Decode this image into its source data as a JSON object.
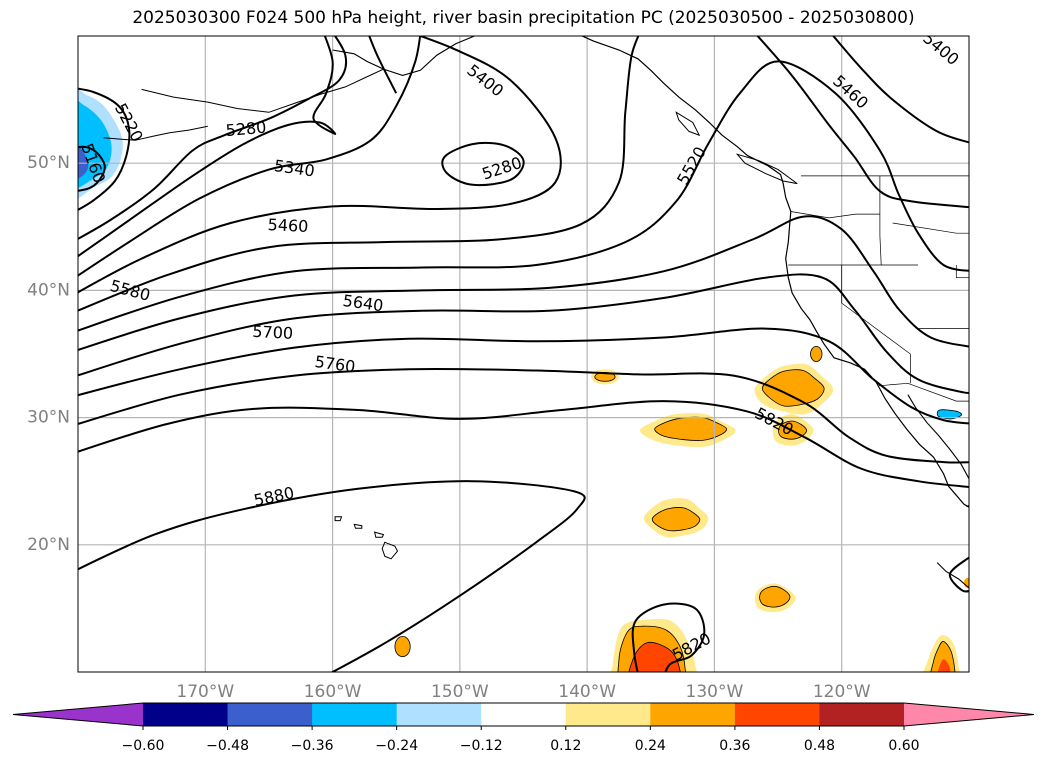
{
  "chart_data": {
    "type": "contour map",
    "title": "2025030300 F024 500 hPa height, river basin precipitation PC (2025030500 - 2025030800)",
    "lon_range": [
      -180,
      -110
    ],
    "lat_range": [
      10,
      60
    ],
    "lon_ticks": [
      -170,
      -160,
      -150,
      -140,
      -130,
      -120
    ],
    "lon_tick_labels": [
      "170°W",
      "160°W",
      "150°W",
      "140°W",
      "130°W",
      "120°W"
    ],
    "lat_ticks": [
      20,
      30,
      40,
      50
    ],
    "lat_tick_labels": [
      "20°N",
      "30°N",
      "40°N",
      "50°N"
    ],
    "grid": true,
    "colorbar": {
      "levels": [
        -0.6,
        -0.48,
        -0.36,
        -0.24,
        -0.12,
        0.12,
        0.24,
        0.36,
        0.48,
        0.6
      ],
      "tick_labels": [
        "−0.60",
        "−0.48",
        "−0.36",
        "−0.24",
        "−0.12",
        "0.12",
        "0.24",
        "0.36",
        "0.48",
        "0.60"
      ],
      "colors": [
        "#9933cc",
        "#00008b",
        "#3b5fcd",
        "#00bfff",
        "#b0e0ff",
        "#ffffff",
        "#ffe98a",
        "#ffa500",
        "#ff4500",
        "#b22222",
        "#ff88aa"
      ],
      "extend": "both",
      "orientation": "horizontal"
    },
    "height_contours_gpm": [
      {
        "value": 5160,
        "label": "5160",
        "labeled": true
      },
      {
        "value": 5220,
        "label": "5220",
        "labeled": true
      },
      {
        "value": 5280,
        "label": "5280",
        "labeled": true
      },
      {
        "value": 5280,
        "label": "5280",
        "labeled": true
      },
      {
        "value": 5340,
        "label": "5340",
        "labeled": true
      },
      {
        "value": 5400,
        "label": "5400",
        "labeled": true
      },
      {
        "value": 5400,
        "label": "5400",
        "labeled": true
      },
      {
        "value": 5460,
        "label": "5460",
        "labeled": true
      },
      {
        "value": 5460,
        "label": "5460",
        "labeled": true
      },
      {
        "value": 5520,
        "label": "5520",
        "labeled": true
      },
      {
        "value": 5580,
        "label": "5580",
        "labeled": true
      },
      {
        "value": 5640,
        "label": "5640",
        "labeled": true
      },
      {
        "value": 5700,
        "label": "5700",
        "labeled": true
      },
      {
        "value": 5760,
        "label": "5760",
        "labeled": true
      },
      {
        "value": 5820,
        "label": "5820",
        "labeled": true
      },
      {
        "value": 5820,
        "label": "5820",
        "labeled": true
      },
      {
        "value": 5880,
        "label": "5880",
        "labeled": true
      }
    ],
    "precip_pc_regions": [
      {
        "name": "gulf-of-alaska-negative",
        "value_band": "-0.36 to -0.48",
        "center": [
          -179,
          51
        ]
      },
      {
        "name": "off-baja-blob",
        "value_band": "0.24 to 0.36",
        "center": [
          -124,
          32.5
        ]
      },
      {
        "name": "mid-pacific-blob-1",
        "value_band": "0.24 to 0.36",
        "center": [
          -132,
          29
        ]
      },
      {
        "name": "mid-pacific-blob-2",
        "value_band": "0.24 to 0.36",
        "center": [
          -133,
          22
        ]
      },
      {
        "name": "mid-pacific-blob-3",
        "value_band": "0.24 to 0.36",
        "center": [
          -125,
          16
        ]
      },
      {
        "name": "southern-blob",
        "value_band": "0.36 to 0.48",
        "center": [
          -134,
          11
        ]
      },
      {
        "name": "mexico-coast-blob",
        "value_band": "0.36 to 0.48",
        "center": [
          -112,
          11
        ]
      }
    ]
  }
}
